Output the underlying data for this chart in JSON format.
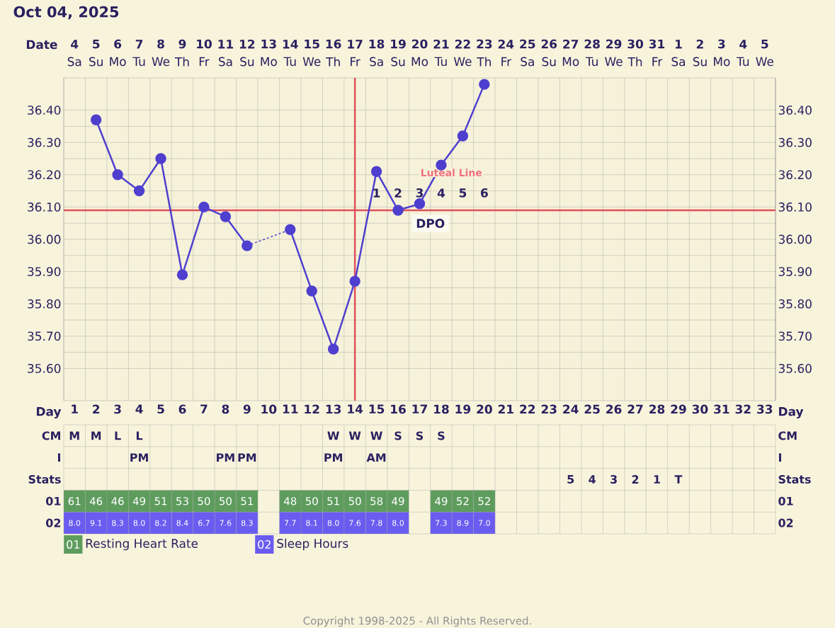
{
  "chart_data": [
    {
      "type": "other",
      "title": "Oct 04, 2025",
      "annotations": [
        "Sa",
        "Su",
        "Mo",
        "Tu",
        "We",
        "Th",
        "Fr",
        "Sa",
        "Su",
        "Mo",
        "Tu",
        "We",
        "Th",
        "Fr",
        "Sa",
        "Su",
        "Mo",
        "Tu",
        "We",
        "Th",
        "Fr",
        "Sa",
        "Su",
        "Mo",
        "Tu",
        "We",
        "Th",
        "Fr",
        "Sa",
        "Su",
        "Mo",
        "Tu",
        "We"
      ]
    },
    {
      "type": "line",
      "xlabel": "Day",
      "x2label": "Date",
      "x2lim": [
        "2025-10-03T12:00",
        "2025-11-05T12:00"
      ],
      "x2ticks": [
        {
          "value": "2025-10-04",
          "label": "4"
        },
        {
          "value": "2025-10-05",
          "label": "5"
        },
        {
          "value": "2025-10-06",
          "label": "6"
        },
        {
          "value": "2025-10-07",
          "label": "7"
        },
        {
          "value": "2025-10-08",
          "label": "8"
        },
        {
          "value": "2025-10-09",
          "label": "9"
        },
        {
          "value": "2025-10-10",
          "label": "10"
        },
        {
          "value": "2025-10-11",
          "label": "11"
        },
        {
          "value": "2025-10-12",
          "label": "12"
        },
        {
          "value": "2025-10-13",
          "label": "13"
        },
        {
          "value": "2025-10-14",
          "label": "14"
        },
        {
          "value": "2025-10-15",
          "label": "15"
        },
        {
          "value": "2025-10-16",
          "label": "16"
        },
        {
          "value": "2025-10-17",
          "label": "17"
        },
        {
          "value": "2025-10-18",
          "label": "18"
        },
        {
          "value": "2025-10-19",
          "label": "19"
        },
        {
          "value": "2025-10-20",
          "label": "20"
        },
        {
          "value": "2025-10-21",
          "label": "21"
        },
        {
          "value": "2025-10-22",
          "label": "22"
        },
        {
          "value": "2025-10-23",
          "label": "23"
        },
        {
          "value": "2025-10-24",
          "label": "24"
        },
        {
          "value": "2025-10-25",
          "label": "25"
        },
        {
          "value": "2025-10-26",
          "label": "26"
        },
        {
          "value": "2025-10-27",
          "label": "27"
        },
        {
          "value": "2025-10-28",
          "label": "28"
        },
        {
          "value": "2025-10-29",
          "label": "29"
        },
        {
          "value": "2025-10-30",
          "label": "30"
        },
        {
          "value": "2025-10-31",
          "label": "31"
        },
        {
          "value": "2025-11-01",
          "label": "1"
        },
        {
          "value": "2025-11-02",
          "label": "2"
        },
        {
          "value": "2025-11-03",
          "label": "3"
        },
        {
          "value": "2025-11-04",
          "label": "4"
        },
        {
          "value": "2025-11-05",
          "label": "5"
        }
      ],
      "categories": [
        "1",
        "2",
        "3",
        "4",
        "5",
        "6",
        "7",
        "8",
        "9",
        "10",
        "11",
        "12",
        "13",
        "14",
        "15",
        "16",
        "17",
        "18",
        "19",
        "20",
        "21",
        "22",
        "23",
        "24",
        "25",
        "26",
        "27",
        "28",
        "29",
        "30",
        "31",
        "32",
        "33"
      ],
      "values": [
        null,
        36.37,
        36.2,
        36.15,
        36.25,
        35.89,
        36.1,
        36.07,
        35.98,
        null,
        36.03,
        35.84,
        35.66,
        35.87,
        36.21,
        36.09,
        36.11,
        36.23,
        36.32,
        36.48,
        null,
        null,
        null,
        null,
        null,
        null,
        null,
        null,
        null,
        null,
        null,
        null,
        null
      ],
      "color": "#4f3fcf",
      "marker": "circle",
      "line_style": "solid",
      "grid": true,
      "ylim": [
        35.5,
        36.5
      ],
      "yticks": [
        {
          "value": 35.6,
          "label": "35.60"
        },
        {
          "value": 35.7,
          "label": "35.70"
        },
        {
          "value": 35.8,
          "label": "35.80"
        },
        {
          "value": 35.9,
          "label": "35.90"
        },
        {
          "value": 36.0,
          "label": "36.00"
        },
        {
          "value": 36.1,
          "label": "36.10"
        },
        {
          "value": 36.2,
          "label": "36.20"
        },
        {
          "value": 36.3,
          "label": "36.30"
        },
        {
          "value": 36.4,
          "label": "36.40"
        }
      ],
      "y2lim": [
        35.5,
        36.5
      ],
      "y2ticks": [
        {
          "value": 35.6,
          "label": "35.60"
        },
        {
          "value": 35.7,
          "label": "35.70"
        },
        {
          "value": 35.8,
          "label": "35.80"
        },
        {
          "value": 35.9,
          "label": "35.90"
        },
        {
          "value": 36.0,
          "label": "36.00"
        },
        {
          "value": 36.1,
          "label": "36.10"
        },
        {
          "value": 36.2,
          "label": "36.20"
        },
        {
          "value": 36.3,
          "label": "36.30"
        },
        {
          "value": 36.4,
          "label": "36.40"
        }
      ],
      "ref_lines": [
        {
          "axis": "y",
          "value": 36.09,
          "color": "#e0505a"
        },
        {
          "axis": "x",
          "value": "14",
          "color": "#e0505a"
        }
      ],
      "annotations": [
        "1",
        "2",
        "3",
        "4",
        "5",
        "6",
        "DPO",
        {
          "text": "Luteal Line",
          "x": "18",
          "y": 36.23
        },
        "Copyright 1998-2025 - All Rights Reserved."
      ]
    },
    {
      "type": "heatmap",
      "grid": true,
      "categories": [
        null,
        null,
        null,
        null,
        null,
        null,
        null,
        null,
        null,
        null,
        null,
        null,
        null,
        null,
        null,
        null,
        null,
        null,
        null,
        null,
        null,
        null,
        null,
        null,
        null,
        null,
        null,
        null,
        null,
        null,
        null,
        null,
        null
      ],
      "y_categories": [
        "CM",
        "I",
        "Stats",
        "01",
        "02"
      ],
      "y2_categories": [
        "CM",
        "I",
        "Stats",
        "01",
        "02"
      ],
      "cells": [
        [
          null,
          null,
          null,
          null,
          null,
          null,
          null,
          null,
          null,
          null,
          null,
          null,
          null,
          null,
          null,
          null,
          null,
          null,
          null,
          null,
          null,
          null,
          null,
          null,
          null,
          null,
          null,
          null,
          null,
          null,
          null,
          null,
          null
        ],
        [
          null,
          null,
          null,
          null,
          null,
          null,
          null,
          null,
          null,
          null,
          null,
          null,
          null,
          null,
          null,
          null,
          null,
          null,
          null,
          null,
          null,
          null,
          null,
          null,
          null,
          null,
          null,
          null,
          null,
          null,
          null,
          null,
          null
        ],
        [
          null,
          null,
          null,
          null,
          null,
          null,
          null,
          null,
          null,
          null,
          null,
          null,
          null,
          null,
          null,
          null,
          null,
          null,
          null,
          null,
          null,
          null,
          null,
          null,
          null,
          null,
          null,
          null,
          null,
          null,
          null,
          null,
          null
        ],
        [
          61,
          46,
          46,
          49,
          51,
          53,
          50,
          50,
          51,
          null,
          48,
          50,
          51,
          50,
          58,
          49,
          null,
          49,
          52,
          52,
          null,
          null,
          null,
          null,
          null,
          null,
          null,
          null,
          null,
          null,
          null,
          null,
          null
        ],
        [
          8.0,
          9.1,
          8.3,
          8.0,
          8.2,
          8.4,
          6.7,
          7.6,
          8.3,
          null,
          7.7,
          8.1,
          8.0,
          7.6,
          7.8,
          8.0,
          null,
          7.3,
          8.9,
          7.0,
          null,
          null,
          null,
          null,
          null,
          null,
          null,
          null,
          null,
          null,
          null,
          null,
          null
        ]
      ],
      "cell_labels": [
        [
          "M",
          "M",
          "L",
          "L",
          null,
          null,
          null,
          null,
          null,
          null,
          null,
          null,
          "W",
          "W",
          "W",
          "S",
          "S",
          "S",
          null,
          null,
          null,
          null,
          null,
          null,
          null,
          null,
          null,
          null,
          null,
          null,
          null,
          null,
          null
        ],
        [
          null,
          null,
          null,
          "PM",
          null,
          null,
          null,
          "PM",
          "PM",
          null,
          null,
          null,
          "PM",
          null,
          "AM",
          null,
          null,
          null,
          null,
          null,
          null,
          null,
          null,
          null,
          null,
          null,
          null,
          null,
          null,
          null,
          null,
          null,
          null
        ],
        [
          null,
          null,
          null,
          null,
          null,
          null,
          null,
          null,
          null,
          null,
          null,
          null,
          null,
          null,
          null,
          null,
          null,
          null,
          null,
          null,
          null,
          null,
          null,
          "5",
          "4",
          "3",
          "2",
          "1",
          "T",
          null,
          null,
          null,
          null
        ],
        [
          "61",
          "46",
          "46",
          "49",
          "51",
          "53",
          "50",
          "50",
          "51",
          null,
          "48",
          "50",
          "51",
          "50",
          "58",
          "49",
          null,
          "49",
          "52",
          "52",
          null,
          null,
          null,
          null,
          null,
          null,
          null,
          null,
          null,
          null,
          null,
          null,
          null
        ],
        [
          "8.0",
          "9.1",
          "8.3",
          "8.0",
          "8.2",
          "8.4",
          "6.7",
          "7.6",
          "8.3",
          null,
          "7.7",
          "8.1",
          "8.0",
          "7.6",
          "7.8",
          "8.0",
          null,
          "7.3",
          "8.9",
          "7.0",
          null,
          null,
          null,
          null,
          null,
          null,
          null,
          null,
          null,
          null,
          null,
          null,
          null
        ]
      ],
      "annotations": [
        "Resting Heart Rate",
        "Sleep Hours"
      ]
    }
  ]
}
